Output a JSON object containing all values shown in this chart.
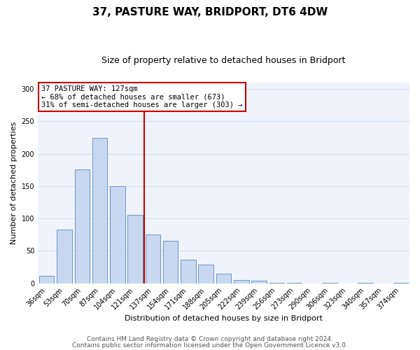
{
  "title": "37, PASTURE WAY, BRIDPORT, DT6 4DW",
  "subtitle": "Size of property relative to detached houses in Bridport",
  "xlabel": "Distribution of detached houses by size in Bridport",
  "ylabel": "Number of detached properties",
  "bar_labels": [
    "36sqm",
    "53sqm",
    "70sqm",
    "87sqm",
    "104sqm",
    "121sqm",
    "137sqm",
    "154sqm",
    "171sqm",
    "188sqm",
    "205sqm",
    "222sqm",
    "239sqm",
    "256sqm",
    "273sqm",
    "290sqm",
    "306sqm",
    "323sqm",
    "340sqm",
    "357sqm",
    "374sqm"
  ],
  "bar_heights": [
    11,
    83,
    176,
    224,
    150,
    105,
    75,
    65,
    36,
    29,
    15,
    5,
    4,
    1,
    1,
    0,
    1,
    0,
    1,
    0,
    1
  ],
  "bar_color": "#c8d8f0",
  "bar_edge_color": "#6699cc",
  "vline_x": 6.0,
  "vline_color": "#cc0000",
  "annotation_title": "37 PASTURE WAY: 127sqm",
  "annotation_line1": "← 68% of detached houses are smaller (673)",
  "annotation_line2": "31% of semi-detached houses are larger (303) →",
  "annotation_box_edge": "#cc0000",
  "annotation_box_face": "#ffffff",
  "ylim": [
    0,
    310
  ],
  "yticks": [
    0,
    50,
    100,
    150,
    200,
    250,
    300
  ],
  "footer1": "Contains HM Land Registry data © Crown copyright and database right 2024.",
  "footer2": "Contains public sector information licensed under the Open Government Licence v3.0.",
  "title_fontsize": 11,
  "subtitle_fontsize": 9,
  "label_fontsize": 8,
  "tick_fontsize": 7,
  "footer_fontsize": 6.5,
  "bg_color": "#f0f4fa"
}
